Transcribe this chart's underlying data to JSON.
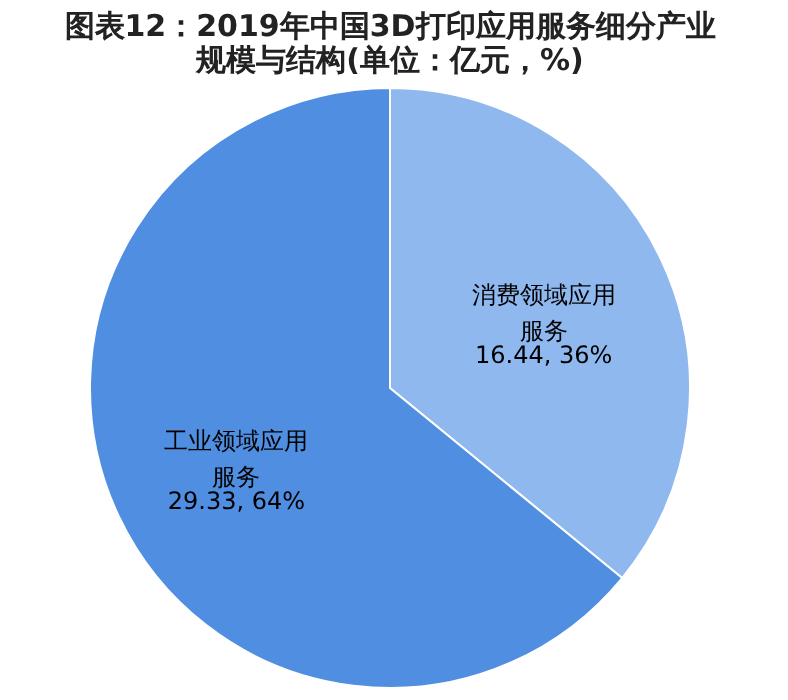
{
  "chart_data": {
    "type": "pie",
    "title": "图表12：2019年中国3D打印应用服务细分产业规模与结构(单位：亿元，%)",
    "categories": [
      "消费领域应用服务",
      "工业领域应用服务"
    ],
    "values": [
      16.44,
      29.33
    ],
    "value_labels": [
      "16.44, 36%",
      "29.33, 64%"
    ],
    "colors": [
      "#8fb8ee",
      "#4f8ee0"
    ],
    "legend": false
  }
}
